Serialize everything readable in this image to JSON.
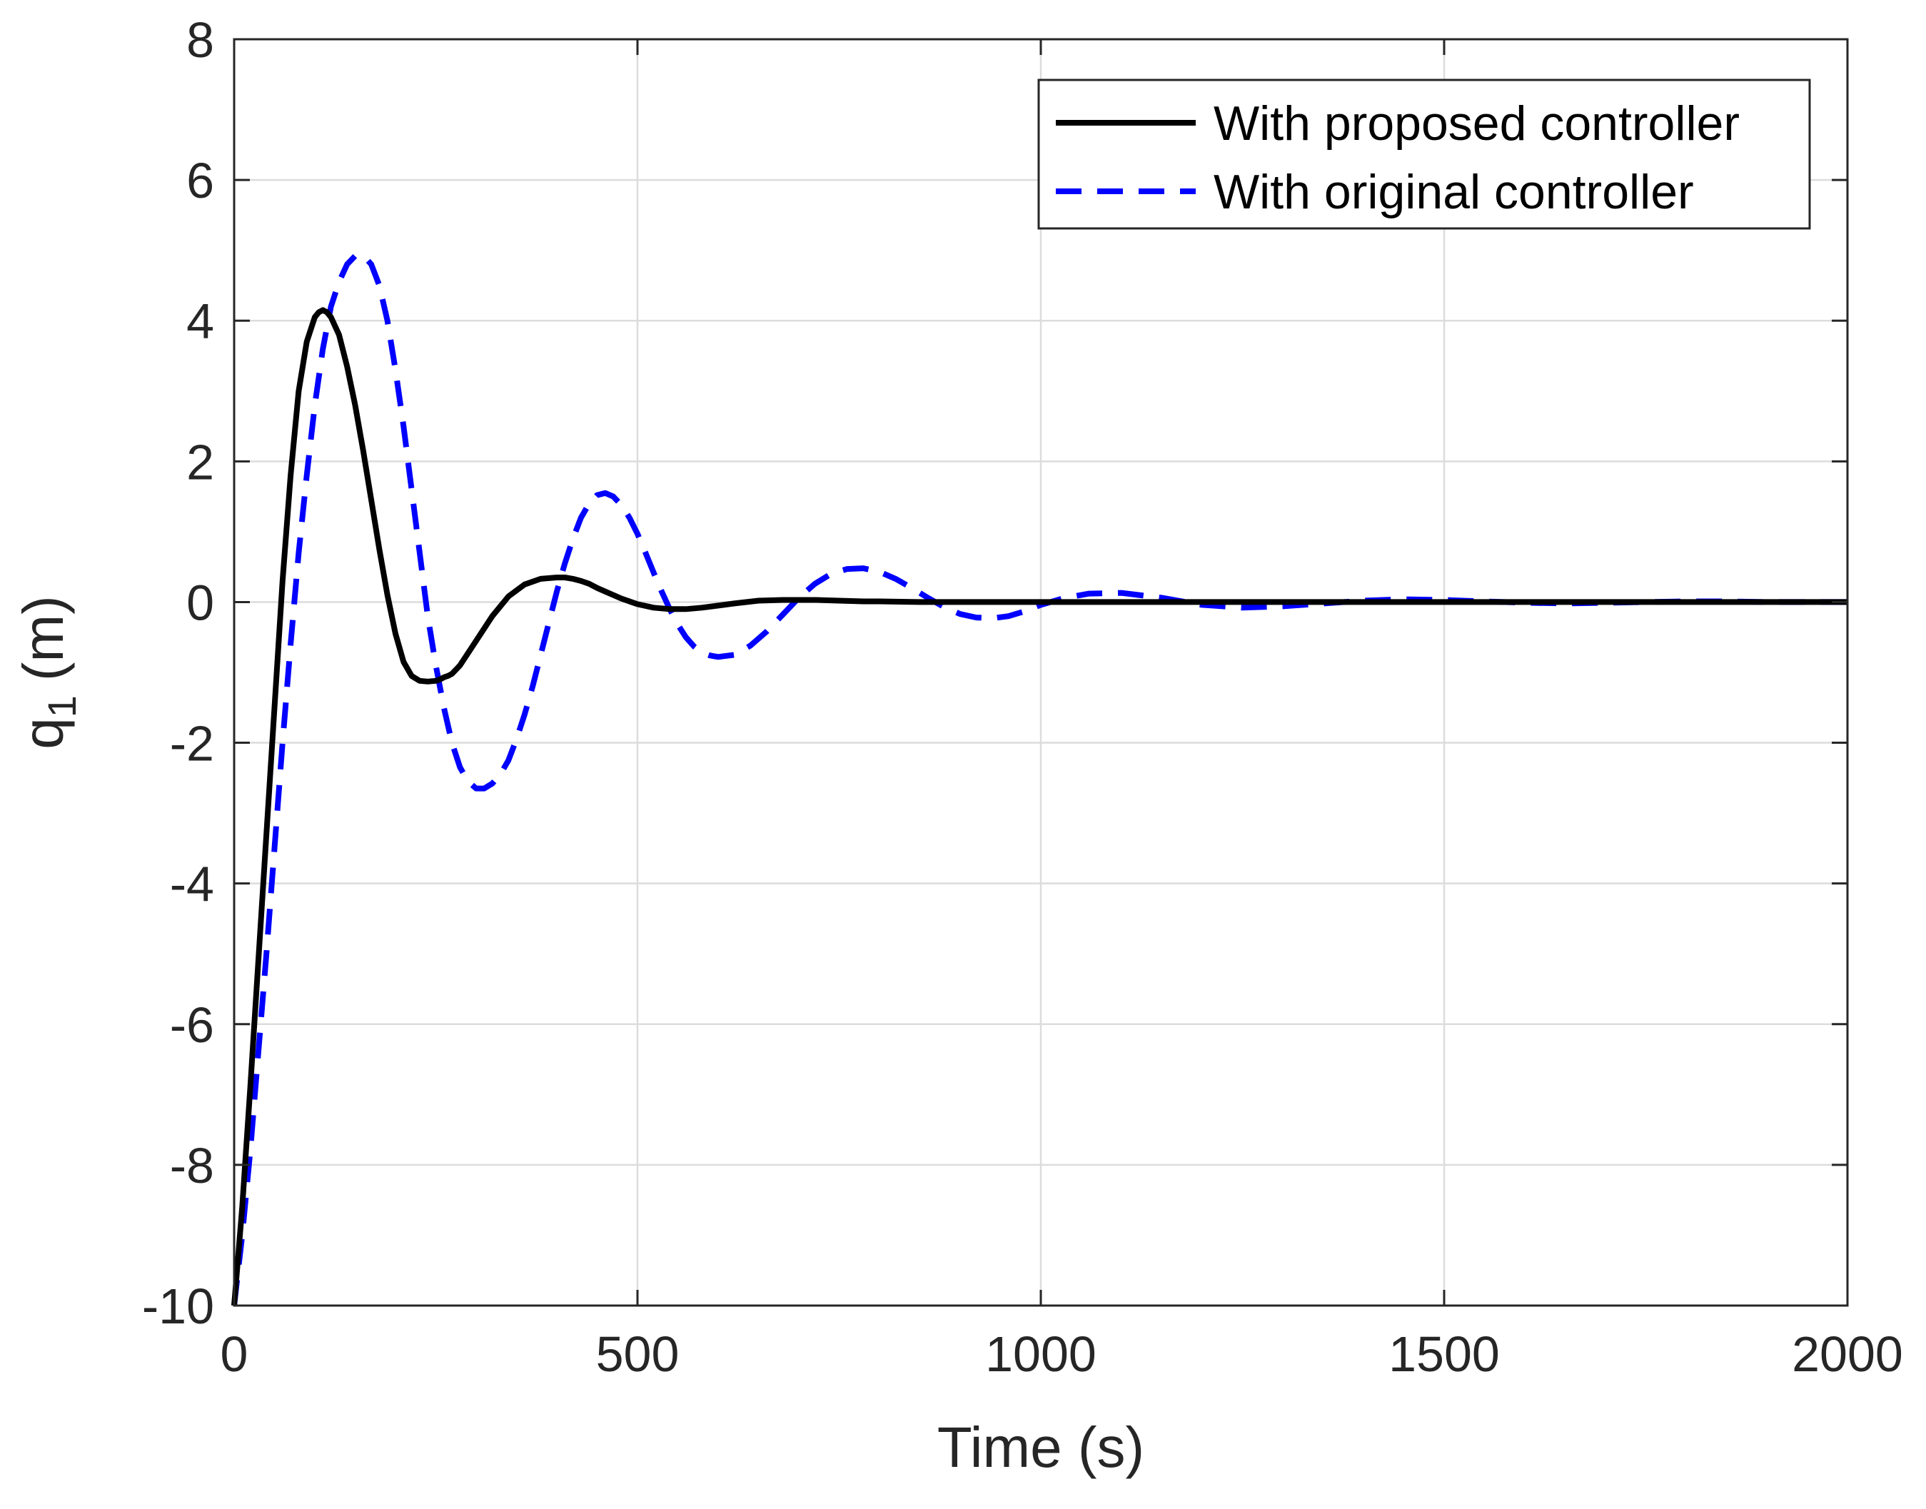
{
  "chart_data": {
    "type": "line",
    "xlabel": "Time (s)",
    "ylabel": "q",
    "ylabel_subscript": "1",
    "ylabel_unit": "(m)",
    "xlim": [
      0,
      2000
    ],
    "ylim": [
      -10,
      8
    ],
    "xticks": [
      0,
      500,
      1000,
      1500,
      2000
    ],
    "yticks": [
      -10,
      -8,
      -6,
      -4,
      -2,
      0,
      2,
      4,
      6,
      8
    ],
    "grid": true,
    "legend_position": "top-right",
    "series": [
      {
        "name": "With proposed controller",
        "color": "#000000",
        "style": "solid",
        "x": [
          0,
          10,
          20,
          30,
          40,
          50,
          60,
          70,
          80,
          90,
          100,
          105,
          110,
          115,
          120,
          130,
          140,
          150,
          160,
          170,
          180,
          190,
          200,
          210,
          220,
          230,
          240,
          250,
          255,
          260,
          265,
          270,
          280,
          300,
          320,
          340,
          360,
          380,
          400,
          410,
          420,
          430,
          440,
          450,
          460,
          480,
          500,
          520,
          540,
          560,
          580,
          600,
          620,
          650,
          680,
          700,
          720,
          750,
          780,
          800,
          850,
          900,
          1000,
          1100,
          1200,
          1300,
          1400,
          1500,
          1600,
          1700,
          1800,
          1900,
          2000
        ],
        "y": [
          -10,
          -8.6,
          -6.9,
          -5.1,
          -3.3,
          -1.5,
          0.3,
          1.8,
          3.0,
          3.7,
          4.05,
          4.12,
          4.15,
          4.12,
          4.05,
          3.8,
          3.35,
          2.8,
          2.15,
          1.45,
          0.75,
          0.1,
          -0.45,
          -0.85,
          -1.05,
          -1.12,
          -1.13,
          -1.12,
          -1.1,
          -1.07,
          -1.05,
          -1.02,
          -0.9,
          -0.55,
          -0.2,
          0.08,
          0.25,
          0.33,
          0.35,
          0.35,
          0.33,
          0.3,
          0.26,
          0.2,
          0.15,
          0.05,
          -0.03,
          -0.08,
          -0.1,
          -0.1,
          -0.08,
          -0.05,
          -0.02,
          0.02,
          0.03,
          0.03,
          0.03,
          0.02,
          0.01,
          0.01,
          0.0,
          0.0,
          0.0,
          0.0,
          0.0,
          0.0,
          0.0,
          0.0,
          0.0,
          0.0,
          0.0,
          0.0,
          0.0
        ]
      },
      {
        "name": "With original controller",
        "color": "#0000ff",
        "style": "dashed",
        "x": [
          0,
          10,
          20,
          30,
          40,
          50,
          60,
          70,
          80,
          90,
          100,
          110,
          120,
          130,
          140,
          150,
          160,
          170,
          180,
          190,
          200,
          210,
          220,
          230,
          240,
          250,
          260,
          270,
          280,
          290,
          300,
          310,
          320,
          330,
          340,
          350,
          360,
          370,
          380,
          390,
          400,
          410,
          420,
          430,
          440,
          450,
          460,
          470,
          480,
          490,
          500,
          510,
          520,
          530,
          540,
          550,
          560,
          570,
          580,
          590,
          600,
          620,
          640,
          660,
          680,
          700,
          720,
          740,
          760,
          780,
          800,
          820,
          840,
          860,
          880,
          900,
          920,
          940,
          960,
          980,
          1000,
          1030,
          1060,
          1100,
          1150,
          1200,
          1250,
          1300,
          1350,
          1400,
          1450,
          1500,
          1550,
          1600,
          1650,
          1700,
          1750,
          1800,
          1850,
          1900,
          1950,
          2000
        ],
        "y": [
          -10,
          -9.0,
          -7.8,
          -6.4,
          -5.0,
          -3.5,
          -2.0,
          -0.6,
          0.7,
          1.8,
          2.8,
          3.6,
          4.2,
          4.55,
          4.8,
          4.92,
          4.93,
          4.8,
          4.5,
          4.0,
          3.3,
          2.5,
          1.6,
          0.7,
          -0.2,
          -0.9,
          -1.5,
          -2.0,
          -2.35,
          -2.55,
          -2.65,
          -2.65,
          -2.58,
          -2.45,
          -2.25,
          -1.95,
          -1.6,
          -1.2,
          -0.75,
          -0.3,
          0.15,
          0.55,
          0.9,
          1.2,
          1.4,
          1.52,
          1.55,
          1.5,
          1.38,
          1.2,
          0.97,
          0.7,
          0.42,
          0.15,
          -0.1,
          -0.32,
          -0.5,
          -0.63,
          -0.72,
          -0.76,
          -0.78,
          -0.75,
          -0.62,
          -0.42,
          -0.18,
          0.06,
          0.26,
          0.4,
          0.47,
          0.48,
          0.43,
          0.33,
          0.2,
          0.06,
          -0.07,
          -0.17,
          -0.22,
          -0.23,
          -0.2,
          -0.13,
          -0.04,
          0.06,
          0.12,
          0.13,
          0.06,
          -0.04,
          -0.08,
          -0.06,
          -0.02,
          0.02,
          0.04,
          0.03,
          0.01,
          -0.01,
          -0.02,
          -0.01,
          0.0,
          0.01,
          0.01,
          0.0,
          0.0,
          0.0
        ]
      }
    ]
  }
}
